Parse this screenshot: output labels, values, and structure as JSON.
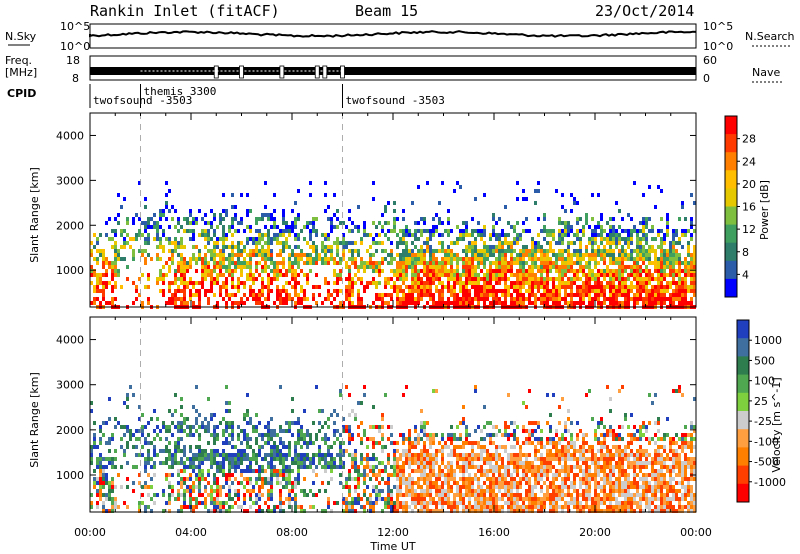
{
  "header": {
    "radar": "Rankin Inlet (fitACF)",
    "beam": "Beam 15",
    "date": "23/Oct/2014"
  },
  "summary": {
    "nsky_label": "N.Sky",
    "nsearch_label": "N.Search",
    "freq_label_1": "Freq.",
    "freq_label_2": "[MHz]",
    "nave_label": "Nave",
    "cpid_label": "CPID",
    "nsky_ticks": [
      "10^5",
      "10^0"
    ],
    "nsearch_ticks": [
      "10^5",
      "10^0"
    ],
    "freq_ticks": [
      "18",
      "8"
    ],
    "nave_ticks": [
      "60",
      "0"
    ]
  },
  "cpid_blocks": [
    {
      "name": "twofsound -3503",
      "start_h": 0.0,
      "end_h": 2.0
    },
    {
      "name": "themis 3300",
      "start_h": 2.0,
      "end_h": 10.0
    },
    {
      "name": "twofsound -3503",
      "start_h": 10.0,
      "end_h": 24.0
    }
  ],
  "chart_data": [
    {
      "type": "heatmap",
      "name": "power",
      "ylabel": "Slant Range [km]",
      "xlim_hours": [
        0,
        24
      ],
      "ylim_km": [
        180,
        4500
      ],
      "y_ticks": [
        1000,
        2000,
        3000,
        4000
      ],
      "colorbar": {
        "label": "Power [dB]",
        "ticks": [
          "28",
          "24",
          "20",
          "16",
          "12",
          "8",
          "4"
        ],
        "colors": [
          "#ff0000",
          "#ff3a00",
          "#ff7f00",
          "#ffbf00",
          "#e6c800",
          "#7fbf3f",
          "#3f9f5f",
          "#2e7d6b",
          "#2a5caa",
          "#0000ff"
        ]
      }
    },
    {
      "type": "heatmap",
      "name": "velocity",
      "ylabel": "Slant Range [km]",
      "xlabel": "Time UT",
      "xlim_hours": [
        0,
        24
      ],
      "ylim_km": [
        180,
        4500
      ],
      "y_ticks": [
        1000,
        2000,
        3000,
        4000
      ],
      "x_tick_labels": [
        "00:00",
        "04:00",
        "08:00",
        "12:00",
        "16:00",
        "20:00",
        "00:00"
      ],
      "x_tick_hours": [
        0,
        4,
        8,
        12,
        16,
        20,
        24
      ],
      "colorbar": {
        "label": "Velocity [m s^-1]",
        "ticks": [
          "1000",
          "500",
          "100",
          "25",
          "-25",
          "-100",
          "-500",
          "-1000"
        ],
        "colors": [
          "#1f3fbf",
          "#3f6f9f",
          "#2e7d4f",
          "#4fa84f",
          "#7fd03f",
          "#cccccc",
          "#ff9f3f",
          "#ff7f00",
          "#ff3f00",
          "#ff0000"
        ]
      }
    }
  ]
}
